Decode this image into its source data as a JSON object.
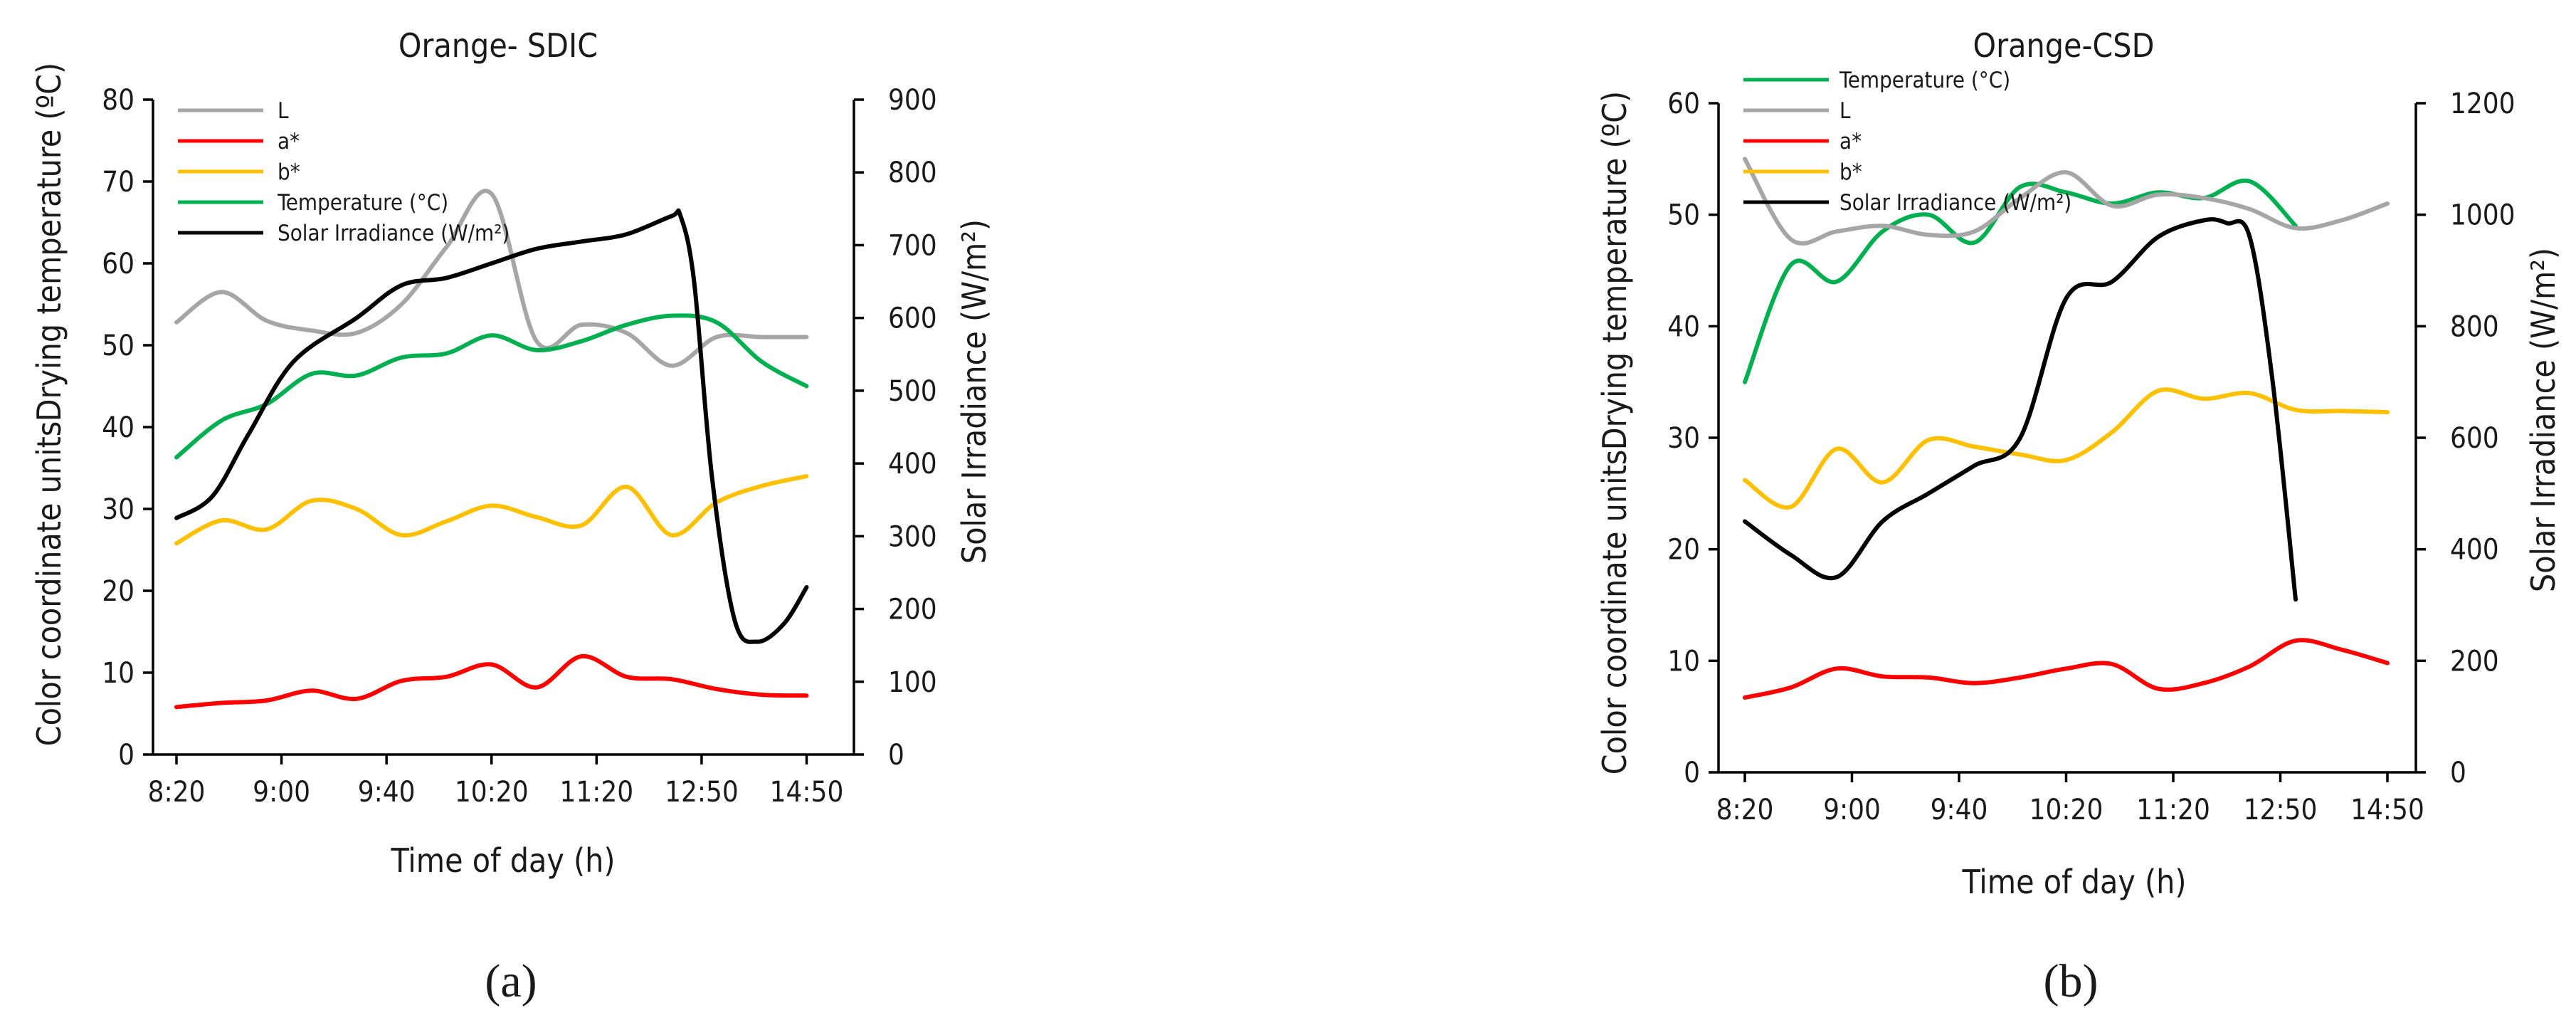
{
  "chart_data": [
    {
      "type": "line",
      "panel": "a",
      "title": "Orange- SDIC",
      "xlabel": "Time of day (h)",
      "ylabel_left": [
        "Color coordinate units",
        "Drying temperature (ºC)"
      ],
      "ylabel_right": "Solar Irradiance (W/m²)",
      "x_ticks": [
        "8:20",
        "9:00",
        "9:40",
        "10:20",
        "11:20",
        "12:50",
        "14:50"
      ],
      "ylim_left": [
        0,
        80
      ],
      "yticks_left": [
        0,
        10,
        20,
        30,
        40,
        50,
        60,
        70,
        80
      ],
      "ylim_right": [
        0,
        900
      ],
      "yticks_right": [
        0,
        100,
        200,
        300,
        400,
        500,
        600,
        700,
        800,
        900
      ],
      "legend": [
        "L",
        "a*",
        "b*",
        "Temperature (°C)",
        "Solar Irradiance (W/m²)"
      ],
      "series": [
        {
          "name": "L",
          "color": "#a6a6a6",
          "axis": "left",
          "x": [
            0,
            0.5,
            1,
            1.5,
            2,
            2.5,
            3,
            3.5,
            4,
            4.5,
            5,
            5.5,
            6,
            6.5,
            7
          ],
          "values": [
            52.8,
            56.5,
            53,
            51.8,
            51.5,
            55,
            62,
            68.5,
            50.5,
            52.5,
            51.5,
            47.5,
            51,
            51,
            51
          ]
        },
        {
          "name": "a*",
          "color": "#ff0000",
          "axis": "left",
          "x": [
            0,
            0.5,
            1,
            1.5,
            2,
            2.5,
            3,
            3.5,
            4,
            4.5,
            5,
            5.5,
            6,
            6.5,
            7
          ],
          "values": [
            5.8,
            6.3,
            6.6,
            7.8,
            6.8,
            9,
            9.5,
            11,
            8.2,
            12,
            9.5,
            9.2,
            8,
            7.3,
            7.2
          ]
        },
        {
          "name": "b*",
          "color": "#ffc000",
          "axis": "left",
          "x": [
            0,
            0.5,
            1,
            1.5,
            2,
            2.5,
            3,
            3.5,
            4,
            4.5,
            5,
            5.5,
            6,
            6.5,
            7
          ],
          "values": [
            25.8,
            28.6,
            27.5,
            31,
            30,
            26.8,
            28.5,
            30.4,
            29,
            28,
            32.7,
            26.8,
            30.8,
            32.8,
            34
          ]
        },
        {
          "name": "Temperature (°C)",
          "color": "#00b050",
          "axis": "left",
          "x": [
            0,
            0.5,
            1,
            1.5,
            2,
            2.5,
            3,
            3.5,
            4,
            4.5,
            5,
            5.5,
            6,
            6.5,
            7
          ],
          "values": [
            36.3,
            40.8,
            42.8,
            46.5,
            46.3,
            48.5,
            49,
            51.2,
            49.4,
            50.5,
            52.5,
            53.6,
            52.8,
            48,
            45
          ]
        },
        {
          "name": "Solar Irradiance (W/m²)",
          "color": "#000000",
          "axis": "right",
          "x": [
            0,
            0.4,
            0.8,
            1.3,
            2,
            2.5,
            3,
            3.5,
            4,
            4.5,
            5,
            5.5,
            5.6,
            5.75,
            5.95,
            6.2,
            6.45,
            6.75,
            7
          ],
          "values": [
            325,
            355,
            440,
            540,
            600,
            645,
            655,
            675,
            695,
            705,
            715,
            740,
            740,
            650,
            380,
            185,
            155,
            180,
            230
          ]
        }
      ]
    },
    {
      "type": "line",
      "panel": "b",
      "title": "Orange-CSD",
      "xlabel": "Time of day (h)",
      "ylabel_left": [
        "Color coordinate units",
        "Drying temperature (ºC)"
      ],
      "ylabel_right": "Solar Irradiance (W/m²)",
      "x_ticks": [
        "8:20",
        "9:00",
        "9:40",
        "10:20",
        "11:20",
        "12:50",
        "14:50"
      ],
      "ylim_left": [
        0,
        60
      ],
      "yticks_left": [
        0,
        10,
        20,
        30,
        40,
        50,
        60
      ],
      "ylim_right": [
        0,
        1200
      ],
      "yticks_right": [
        0,
        200,
        400,
        600,
        800,
        1000,
        1200
      ],
      "legend": [
        "Temperature (°C)",
        "L",
        "a*",
        "b*",
        "Solar Irradiance (W/m²)"
      ],
      "series": [
        {
          "name": "Temperature (°C)",
          "color": "#00b050",
          "axis": "left",
          "x": [
            0,
            0.5,
            1,
            1.5,
            2,
            2.5,
            3,
            3.5,
            4,
            4.5,
            5,
            5.5,
            6
          ],
          "values": [
            35,
            45.5,
            44,
            48.5,
            50,
            47.5,
            52.5,
            52,
            51,
            52,
            51.5,
            53,
            49
          ]
        },
        {
          "name": "L",
          "color": "#a6a6a6",
          "axis": "left",
          "x": [
            0,
            0.5,
            1,
            1.5,
            2,
            2.5,
            3,
            3.5,
            4,
            4.5,
            5,
            5.5,
            6,
            6.5,
            7
          ],
          "values": [
            55,
            47.8,
            48.5,
            49,
            48.2,
            48.5,
            51.5,
            53.8,
            50.8,
            51.8,
            51.5,
            50.5,
            48.8,
            49.5,
            51
          ]
        },
        {
          "name": "a*",
          "color": "#ff0000",
          "axis": "left",
          "x": [
            0,
            0.5,
            1,
            1.5,
            2,
            2.5,
            3,
            3.5,
            4,
            4.5,
            5,
            5.5,
            6,
            6.5,
            7
          ],
          "values": [
            6.7,
            7.6,
            9.3,
            8.6,
            8.5,
            8,
            8.5,
            9.3,
            9.7,
            7.5,
            8,
            9.5,
            11.8,
            11,
            9.8
          ]
        },
        {
          "name": "b*",
          "color": "#ffc000",
          "axis": "left",
          "x": [
            0,
            0.5,
            1,
            1.5,
            2,
            2.5,
            3,
            3.5,
            4,
            4.5,
            5,
            5.5,
            6,
            6.5,
            7
          ],
          "values": [
            26.2,
            23.8,
            29,
            26,
            29.8,
            29.2,
            28.5,
            28,
            30.5,
            34.2,
            33.5,
            34,
            32.5,
            32.4,
            32.3
          ]
        },
        {
          "name": "Solar Irradiance (W/m²)",
          "color": "#000000",
          "axis": "right",
          "x": [
            0,
            0.5,
            1,
            1.5,
            2,
            2.5,
            3,
            3.5,
            4,
            4.5,
            5,
            5.25,
            5.5,
            5.75,
            6
          ],
          "values": [
            450,
            390,
            350,
            450,
            500,
            550,
            600,
            850,
            880,
            960,
            990,
            985,
            960,
            700,
            310
          ]
        }
      ]
    }
  ],
  "panel_labels": {
    "a": "(a)",
    "b": "(b)"
  }
}
